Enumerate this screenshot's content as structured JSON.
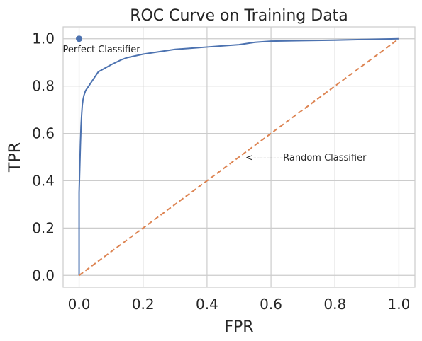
{
  "chart_data": {
    "type": "line",
    "title": "ROC Curve on Training Data",
    "xlabel": "FPR",
    "ylabel": "TPR",
    "xlim": [
      -0.05,
      1.05
    ],
    "ylim": [
      -0.05,
      1.05
    ],
    "xticks": [
      "0.0",
      "0.2",
      "0.4",
      "0.6",
      "0.8",
      "1.0"
    ],
    "yticks": [
      "0.0",
      "0.2",
      "0.4",
      "0.6",
      "0.8",
      "1.0"
    ],
    "grid": true,
    "series": [
      {
        "color": "#4c72b0",
        "style": "solid",
        "x": [
          0.0,
          0.0,
          0.002,
          0.004,
          0.006,
          0.008,
          0.01,
          0.012,
          0.015,
          0.02,
          0.03,
          0.04,
          0.05,
          0.06,
          0.08,
          0.1,
          0.13,
          0.15,
          0.2,
          0.25,
          0.3,
          0.35,
          0.4,
          0.45,
          0.5,
          0.55,
          0.6,
          0.7,
          0.8,
          0.9,
          1.0
        ],
        "y": [
          0.0,
          0.35,
          0.45,
          0.55,
          0.63,
          0.68,
          0.72,
          0.74,
          0.76,
          0.78,
          0.8,
          0.82,
          0.84,
          0.86,
          0.875,
          0.89,
          0.91,
          0.92,
          0.935,
          0.945,
          0.955,
          0.96,
          0.965,
          0.97,
          0.975,
          0.985,
          0.99,
          0.992,
          0.994,
          0.997,
          1.0
        ]
      },
      {
        "color": "#dd8452",
        "style": "dashed",
        "x": [
          0.0,
          1.0
        ],
        "y": [
          0.0,
          1.0
        ]
      }
    ],
    "points": [
      {
        "x": 0.0,
        "y": 1.0,
        "color": "#4c72b0"
      }
    ],
    "annotations": [
      {
        "text": "Perfect Classifier",
        "x": 0.0,
        "y": 0.96
      },
      {
        "text": "<---------Random Classifier",
        "x": 0.52,
        "y": 0.5
      }
    ]
  }
}
